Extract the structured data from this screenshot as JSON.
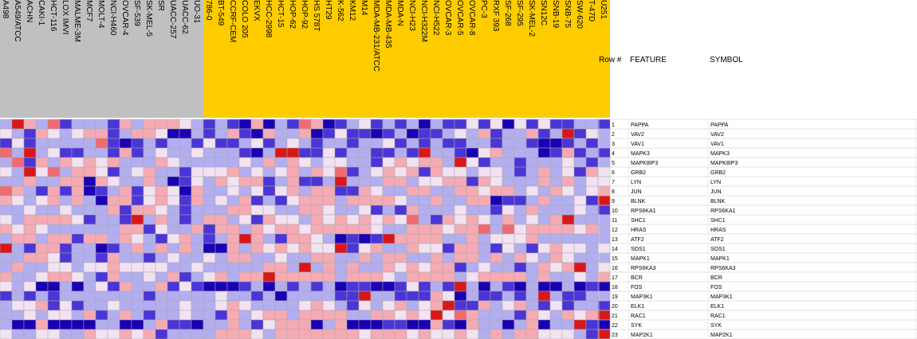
{
  "chart_data": {
    "type": "heatmap",
    "columns": [
      "A498",
      "A549/ATCC",
      "ACHN",
      "CAKI-1",
      "HCT-116",
      "LOX IMVI",
      "MALME-3M",
      "MCF7",
      "MOLT-4",
      "NCI-H460",
      "OVCAR-4",
      "SF-539",
      "SK-MEL-5",
      "SR",
      "UACC-257",
      "UACC-62",
      "UO-31",
      "786-0",
      "BT-549",
      "CCRF-CEM",
      "COLO 205",
      "EKVX",
      "HCC-2998",
      "HCT-15",
      "HOP-62",
      "HOP-92",
      "HS 578T",
      "HT29",
      "K-562",
      "KM12",
      "M14",
      "MDA-MB-231/ATCC",
      "MDA-MB-435",
      "MDA-N",
      "NCI-H23",
      "NCI-H322M",
      "NCI-H522",
      "OVCAR-3",
      "OVCAR-5",
      "OVCAR-8",
      "PC-3",
      "RXF 393",
      "SF-268",
      "SF-295",
      "SK-MEL-2",
      "SN12C",
      "SNB-19",
      "SNB-75",
      "SW-620",
      "T-47D",
      "U251"
    ],
    "column_groups": [
      {
        "color": "#c0c0c0",
        "count": 17
      },
      {
        "color": "#ffcc00",
        "count": 34
      }
    ],
    "rows": [
      {
        "num": "1",
        "feature": "PAPPA",
        "symbol": "PAPPA"
      },
      {
        "num": "2",
        "feature": "VAV2",
        "symbol": "VAV2"
      },
      {
        "num": "3",
        "feature": "VAV1",
        "symbol": "VAV1"
      },
      {
        "num": "4",
        "feature": "MAPK3",
        "symbol": "MAPK3"
      },
      {
        "num": "5",
        "feature": "MAPK8IP3",
        "symbol": "MAPK8IP3"
      },
      {
        "num": "6",
        "feature": "GRB2",
        "symbol": "GRB2"
      },
      {
        "num": "7",
        "feature": "LYN",
        "symbol": "LYN"
      },
      {
        "num": "8",
        "feature": "JUN",
        "symbol": "JUN"
      },
      {
        "num": "9",
        "feature": "BLNK",
        "symbol": "BLNK"
      },
      {
        "num": "10",
        "feature": "RPS6KA1",
        "symbol": "RPS6KA1"
      },
      {
        "num": "11",
        "feature": "SHC1",
        "symbol": "SHC1"
      },
      {
        "num": "12",
        "feature": "HRAS",
        "symbol": "HRAS"
      },
      {
        "num": "13",
        "feature": "ATF2",
        "symbol": "ATF2"
      },
      {
        "num": "14",
        "feature": "SOS1",
        "symbol": "SOS1"
      },
      {
        "num": "15",
        "feature": "MAPK1",
        "symbol": "MAPK1"
      },
      {
        "num": "16",
        "feature": "RPS6KA3",
        "symbol": "RPS6KA3"
      },
      {
        "num": "17",
        "feature": "BCR",
        "symbol": "BCR"
      },
      {
        "num": "18",
        "feature": "FOS",
        "symbol": "FOS"
      },
      {
        "num": "19",
        "feature": "MAP3K1",
        "symbol": "MAP3K1"
      },
      {
        "num": "20",
        "feature": "ELK1",
        "symbol": "ELK1"
      },
      {
        "num": "21",
        "feature": "RAC1",
        "symbol": "RAC1"
      },
      {
        "num": "22",
        "feature": "SYK",
        "symbol": "SYK"
      },
      {
        "num": "23",
        "feature": "MAP2K1",
        "symbol": "MAP2K1"
      }
    ],
    "headers": {
      "row_num": "Row #",
      "feature": "FEATURE",
      "symbol": "SYMBOL"
    },
    "values": [
      [
        -1,
        3,
        1,
        -1,
        2,
        -2,
        -1,
        -1,
        -1,
        -2,
        1,
        -1,
        1,
        1,
        1,
        0,
        -1,
        -2,
        -1,
        -2,
        -3,
        1,
        -3,
        -1,
        -2,
        2,
        1,
        -3,
        -2,
        -1,
        0,
        -2,
        -1,
        -2,
        -1,
        -3,
        -1,
        -2,
        -2,
        0,
        -2,
        0,
        -3,
        0,
        -2,
        0,
        -2,
        -2,
        -1,
        -1,
        -2
      ],
      [
        0,
        -1,
        -2,
        1,
        0,
        -1,
        0,
        1,
        1,
        -2,
        -1,
        1,
        1,
        0,
        -3,
        -3,
        -1,
        -2,
        -1,
        1,
        -2,
        -3,
        1,
        -1,
        -1,
        1,
        -3,
        -2,
        0,
        -2,
        -2,
        -3,
        -2,
        -1,
        -3,
        -2,
        -2,
        -1,
        0,
        -1,
        1,
        -2,
        -1,
        -1,
        1,
        -2,
        -1,
        3,
        -2,
        0,
        -1
      ],
      [
        -2,
        0,
        -2,
        -1,
        -1,
        -1,
        -1,
        -1,
        2,
        -2,
        -3,
        -2,
        -1,
        -2,
        -1,
        -1,
        -2,
        0,
        -2,
        -2,
        -1,
        0,
        -2,
        -1,
        0,
        -1,
        -2,
        -1,
        -1,
        -2,
        -1,
        -1,
        0,
        -2,
        -1,
        -2,
        -1,
        -2,
        -2,
        -1,
        -1,
        -2,
        -1,
        -1,
        -2,
        -3,
        -3,
        -2,
        -1,
        -2,
        -1
      ],
      [
        2,
        -1,
        3,
        -1,
        0,
        -2,
        -2,
        -1,
        -1,
        -2,
        1,
        -2,
        -1,
        0,
        -1,
        -1,
        0,
        -1,
        -1,
        -1,
        -2,
        -3,
        -1,
        3,
        3,
        -2,
        -2,
        0,
        -2,
        -1,
        -1,
        -2,
        -2,
        -1,
        -2,
        3,
        -1,
        -1,
        -2,
        -3,
        0,
        1,
        -1,
        -1,
        -1,
        -3,
        -2,
        1,
        -2,
        -1,
        -2
      ],
      [
        -1,
        2,
        -2,
        1,
        -1,
        1,
        0,
        1,
        0,
        1,
        -1,
        -1,
        -1,
        1,
        0,
        -1,
        -1,
        -1,
        -1,
        -1,
        0,
        -1,
        1,
        -1,
        1,
        0,
        -1,
        0,
        0,
        -1,
        -1,
        -2,
        0,
        1,
        0,
        1,
        1,
        -1,
        3,
        0,
        -2,
        -1,
        -1,
        -2,
        -1,
        -1,
        -1,
        0,
        -1,
        -2,
        -1
      ],
      [
        0,
        -1,
        3,
        0,
        2,
        -1,
        1,
        1,
        0,
        -2,
        -1,
        0,
        1,
        -1,
        -1,
        -2,
        0,
        0,
        0,
        1,
        -1,
        0,
        -1,
        0,
        1,
        -1,
        1,
        0,
        2,
        -2,
        -1,
        0,
        1,
        0,
        1,
        -2,
        1,
        0,
        0,
        -1,
        0,
        0,
        -1,
        -2,
        -1,
        1,
        -1,
        0,
        -2,
        1,
        0
      ],
      [
        -1,
        -1,
        1,
        -1,
        -1,
        1,
        1,
        -3,
        1,
        0,
        -1,
        -1,
        1,
        -1,
        -3,
        -2,
        0,
        -1,
        1,
        0,
        1,
        1,
        -2,
        -1,
        1,
        -2,
        -2,
        -1,
        3,
        -1,
        -1,
        -1,
        1,
        1,
        -1,
        0,
        0,
        1,
        1,
        -2,
        1,
        0,
        -1,
        -1,
        -1,
        1,
        -1,
        1,
        -1,
        0,
        0
      ],
      [
        2,
        1,
        -1,
        -2,
        1,
        -2,
        1,
        -3,
        -2,
        -1,
        1,
        -2,
        0,
        1,
        0,
        -3,
        1,
        -1,
        -1,
        0,
        -1,
        0,
        -2,
        0,
        1,
        -1,
        1,
        1,
        -2,
        -2,
        1,
        0,
        -1,
        -1,
        1,
        1,
        -1,
        -1,
        1,
        1,
        0,
        1,
        1,
        -1,
        0,
        -1,
        1,
        0,
        -1,
        0,
        1
      ],
      [
        1,
        0,
        -1,
        0,
        1,
        -1,
        1,
        -1,
        -3,
        1,
        1,
        -2,
        0,
        1,
        0,
        -2,
        1,
        -1,
        0,
        -1,
        1,
        -2,
        -1,
        -2,
        0,
        1,
        1,
        1,
        -1,
        1,
        1,
        1,
        1,
        0,
        -1,
        -1,
        1,
        -1,
        -1,
        1,
        1,
        -3,
        -2,
        -2,
        -1,
        1,
        -1,
        -1,
        0,
        -2,
        3
      ],
      [
        -1,
        -1,
        0,
        -1,
        -1,
        0,
        -1,
        -1,
        -1,
        1,
        -2,
        1,
        1,
        0,
        -1,
        -2,
        -1,
        -1,
        -1,
        1,
        1,
        0,
        0,
        -1,
        -1,
        1,
        1,
        0,
        -1,
        -1,
        0,
        -2,
        -1,
        -2,
        1,
        -1,
        -1,
        -1,
        0,
        -1,
        -1,
        -2,
        0,
        -1,
        1,
        -1,
        -1,
        -1,
        0,
        -1,
        -2
      ],
      [
        0,
        -1,
        1,
        1,
        1,
        1,
        0,
        -2,
        -1,
        -1,
        -2,
        3,
        -1,
        1,
        -1,
        -2,
        -1,
        1,
        1,
        -1,
        0,
        -2,
        1,
        0,
        0,
        -1,
        1,
        0,
        1,
        0,
        1,
        0,
        1,
        0,
        2,
        -1,
        -2,
        1,
        0,
        1,
        0,
        -1,
        1,
        -1,
        0,
        -1,
        1,
        3,
        -1,
        -1,
        -1
      ],
      [
        1,
        0,
        1,
        0,
        -1,
        -1,
        -1,
        -1,
        -1,
        -1,
        1,
        1,
        -2,
        0,
        -1,
        -1,
        1,
        -2,
        1,
        1,
        -1,
        1,
        0,
        1,
        1,
        0,
        1,
        1,
        1,
        1,
        1,
        0,
        -1,
        -1,
        1,
        1,
        1,
        0,
        1,
        1,
        2,
        -1,
        2,
        0,
        1,
        1,
        1,
        1,
        0,
        1,
        -1
      ],
      [
        -1,
        1,
        1,
        -1,
        1,
        1,
        -2,
        1,
        1,
        -1,
        1,
        0,
        -1,
        -2,
        0,
        1,
        -1,
        -2,
        -1,
        1,
        3,
        1,
        -1,
        -2,
        1,
        1,
        0,
        -1,
        -3,
        -2,
        -3,
        -2,
        3,
        1,
        1,
        1,
        1,
        -1,
        -1,
        1,
        -1,
        0,
        0,
        0,
        1,
        -1,
        -1,
        -1,
        -1,
        -1,
        -1
      ],
      [
        3,
        -1,
        -2,
        1,
        1,
        -2,
        -1,
        -1,
        -3,
        -2,
        -1,
        1,
        -1,
        1,
        -1,
        1,
        -1,
        -3,
        -3,
        1,
        -1,
        1,
        0,
        1,
        0,
        1,
        0,
        0,
        3,
        -2,
        0,
        1,
        -1,
        -1,
        1,
        0,
        0,
        -2,
        1,
        1,
        -1,
        -2,
        0,
        -1,
        -2,
        0,
        1,
        0,
        0,
        -1,
        0
      ],
      [
        -1,
        -1,
        1,
        1,
        0,
        -2,
        -1,
        -1,
        -2,
        1,
        -1,
        -1,
        -2,
        -1,
        0,
        -1,
        -1,
        0,
        -1,
        1,
        1,
        -1,
        -1,
        0,
        -1,
        -1,
        1,
        1,
        -1,
        -1,
        1,
        -1,
        1,
        1,
        -1,
        -1,
        1,
        -1,
        1,
        1,
        -1,
        1,
        -1,
        1,
        0,
        -1,
        1,
        0,
        -1,
        -1,
        -1
      ],
      [
        -1,
        1,
        -1,
        -1,
        0,
        0,
        -1,
        0,
        0,
        1,
        0,
        0,
        0,
        0,
        -1,
        -1,
        0,
        -1,
        -1,
        -1,
        -1,
        -1,
        1,
        1,
        -1,
        3,
        -1,
        1,
        -1,
        1,
        -1,
        -1,
        1,
        0,
        1,
        0,
        1,
        1,
        -2,
        -1,
        0,
        -1,
        -1,
        -2,
        -1,
        1,
        0,
        1,
        3,
        -1,
        0
      ],
      [
        1,
        -1,
        -1,
        0,
        1,
        1,
        0,
        -1,
        -2,
        1,
        -1,
        -1,
        0,
        -1,
        1,
        -2,
        -1,
        0,
        1,
        -1,
        1,
        1,
        3,
        1,
        1,
        1,
        1,
        1,
        -1,
        1,
        1,
        1,
        0,
        -1,
        1,
        1,
        1,
        1,
        -1,
        0,
        1,
        1,
        1,
        1,
        -1,
        1,
        -1,
        -1,
        0,
        -1,
        1
      ],
      [
        0,
        -1,
        0,
        -3,
        -3,
        -1,
        -3,
        -1,
        0,
        -2,
        1,
        -1,
        -1,
        1,
        -2,
        0,
        -2,
        -3,
        -3,
        -3,
        -2,
        -1,
        -3,
        -1,
        -2,
        -1,
        -2,
        -1,
        -3,
        -2,
        -2,
        -3,
        -3,
        -2,
        0,
        -2,
        -1,
        -2,
        3,
        -1,
        -3,
        -1,
        -2,
        -3,
        -1,
        -3,
        -3,
        -1,
        -3,
        -2,
        -3
      ],
      [
        -2,
        -1,
        -2,
        -1,
        -2,
        -1,
        -1,
        -1,
        -1,
        -1,
        -1,
        -1,
        -2,
        -1,
        -1,
        -1,
        -1,
        -1,
        0,
        -1,
        -1,
        -2,
        -1,
        -3,
        -1,
        -1,
        -1,
        -1,
        -2,
        -2,
        3,
        -1,
        -1,
        -2,
        -2,
        -2,
        1,
        0,
        -3,
        -1,
        -2,
        -2,
        -1,
        -2,
        -1,
        3,
        -1,
        -2,
        -2,
        -1,
        -1
      ],
      [
        -1,
        0,
        0,
        1,
        -2,
        0,
        -2,
        -1,
        -1,
        0,
        -1,
        -1,
        -1,
        -1,
        -1,
        0,
        -1,
        -1,
        0,
        1,
        0,
        -1,
        -1,
        -1,
        -1,
        0,
        1,
        0,
        -1,
        -2,
        0,
        -1,
        0,
        1,
        -1,
        0,
        1,
        3,
        -2,
        -2,
        1,
        -1,
        0,
        1,
        -1,
        -2,
        0,
        -2,
        -1,
        -1,
        -2
      ],
      [
        -1,
        -1,
        0,
        -1,
        0,
        0,
        -1,
        1,
        -2,
        -1,
        1,
        -1,
        -2,
        -1,
        -1,
        0,
        -1,
        -1,
        -2,
        1,
        -1,
        0,
        1,
        1,
        -1,
        1,
        1,
        1,
        1,
        -1,
        -1,
        1,
        1,
        0,
        1,
        0,
        3,
        0,
        2,
        1,
        -1,
        -1,
        -1,
        -2,
        1,
        0,
        -1,
        1,
        0,
        1,
        3
      ],
      [
        -1,
        -3,
        -3,
        1,
        -3,
        -3,
        -3,
        -3,
        -1,
        -1,
        -3,
        -3,
        -1,
        1,
        -2,
        -2,
        -3,
        -1,
        -1,
        1,
        -1,
        -2,
        0,
        1,
        1,
        1,
        -3,
        -1,
        1,
        -3,
        -3,
        -3,
        -2,
        -2,
        -3,
        -3,
        1,
        -2,
        -3,
        1,
        -1,
        -1,
        -3,
        -1,
        1,
        -3,
        -1,
        -1,
        3,
        -2,
        -3
      ],
      [
        0,
        -1,
        -1,
        0,
        0,
        -1,
        -1,
        1,
        0,
        0,
        1,
        0,
        1,
        -2,
        -1,
        -1,
        -1,
        -1,
        1,
        1,
        1,
        0,
        -1,
        1,
        1,
        1,
        1,
        1,
        1,
        1,
        0,
        1,
        1,
        1,
        0,
        1,
        0,
        0,
        1,
        0,
        -1,
        1,
        -1,
        1,
        1,
        0,
        0,
        0,
        -1,
        -2,
        3
      ]
    ]
  }
}
